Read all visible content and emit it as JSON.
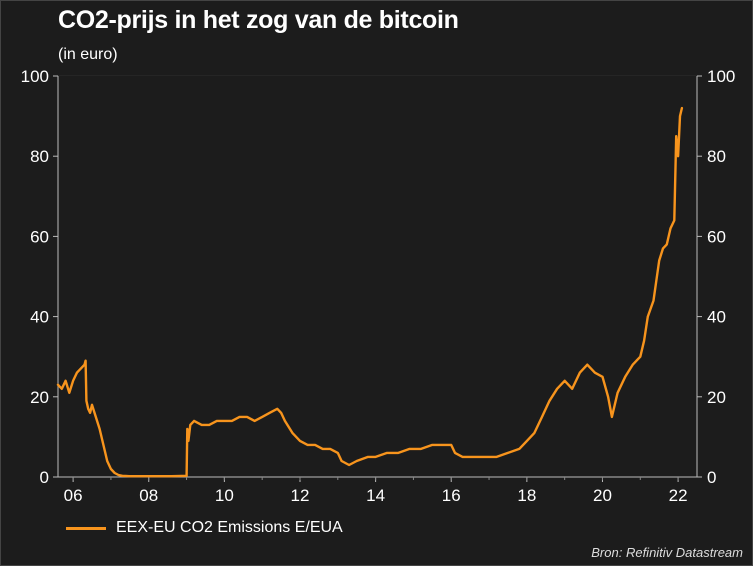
{
  "title": "CO2-prijs in het zog van de bitcoin",
  "subtitle": "(in euro)",
  "source": "Bron: Refinitiv Datastream",
  "colors": {
    "background": "#1c1c1c",
    "line": "#f7941d",
    "text": "#ffffff",
    "grid": "#2e2e2e"
  },
  "chart_data": {
    "type": "line",
    "title": "CO2-prijs in het zog van de bitcoin",
    "ylabel": "(in euro)",
    "xlabel": "",
    "xlim": [
      2005.6,
      2022.5
    ],
    "ylim": [
      0,
      100
    ],
    "x_ticks": [
      2006,
      2008,
      2010,
      2012,
      2014,
      2016,
      2018,
      2020,
      2022
    ],
    "x_tick_labels": [
      "06",
      "08",
      "10",
      "12",
      "14",
      "16",
      "18",
      "20",
      "22"
    ],
    "y_ticks": [
      0,
      20,
      40,
      60,
      80,
      100
    ],
    "y_tick_labels": [
      "0",
      "20",
      "40",
      "60",
      "80",
      "100"
    ],
    "grid": true,
    "dual_y_axis": true,
    "legend_position": "bottom-left",
    "series": [
      {
        "name": "EEX-EU CO2 Emissions E/EUA",
        "x": [
          2005.6,
          2005.7,
          2005.8,
          2005.9,
          2006.0,
          2006.1,
          2006.2,
          2006.3,
          2006.33,
          2006.35,
          2006.4,
          2006.45,
          2006.5,
          2006.6,
          2006.7,
          2006.8,
          2006.9,
          2007.0,
          2007.1,
          2007.2,
          2007.3,
          2007.5,
          2007.8,
          2008.2,
          2008.6,
          2009.0,
          2009.02,
          2009.05,
          2009.1,
          2009.2,
          2009.4,
          2009.6,
          2009.8,
          2010.0,
          2010.2,
          2010.4,
          2010.6,
          2010.8,
          2011.0,
          2011.2,
          2011.4,
          2011.5,
          2011.6,
          2011.8,
          2012.0,
          2012.2,
          2012.4,
          2012.6,
          2012.8,
          2013.0,
          2013.1,
          2013.3,
          2013.5,
          2013.8,
          2014.0,
          2014.3,
          2014.6,
          2014.9,
          2015.2,
          2015.5,
          2015.8,
          2016.0,
          2016.1,
          2016.3,
          2016.6,
          2016.9,
          2017.2,
          2017.5,
          2017.8,
          2018.0,
          2018.2,
          2018.4,
          2018.6,
          2018.8,
          2019.0,
          2019.2,
          2019.4,
          2019.6,
          2019.8,
          2020.0,
          2020.15,
          2020.25,
          2020.4,
          2020.6,
          2020.8,
          2021.0,
          2021.1,
          2021.2,
          2021.35,
          2021.5,
          2021.6,
          2021.7,
          2021.8,
          2021.9,
          2021.95,
          2022.0,
          2022.05,
          2022.1
        ],
        "values": [
          23,
          22,
          24,
          21,
          24,
          26,
          27,
          28,
          29,
          19,
          17,
          16,
          18,
          15,
          12,
          8,
          4,
          2,
          1,
          0.5,
          0.3,
          0.2,
          0.2,
          0.2,
          0.2,
          0.3,
          12,
          9,
          13,
          14,
          13,
          13,
          14,
          14,
          14,
          15,
          15,
          14,
          15,
          16,
          17,
          16,
          14,
          11,
          9,
          8,
          8,
          7,
          7,
          6,
          4,
          3,
          4,
          5,
          5,
          6,
          6,
          7,
          7,
          8,
          8,
          8,
          6,
          5,
          5,
          5,
          5,
          6,
          7,
          9,
          11,
          15,
          19,
          22,
          24,
          22,
          26,
          28,
          26,
          25,
          20,
          15,
          21,
          25,
          28,
          30,
          34,
          40,
          44,
          54,
          57,
          58,
          62,
          64,
          85,
          80,
          90,
          92
        ]
      }
    ]
  }
}
